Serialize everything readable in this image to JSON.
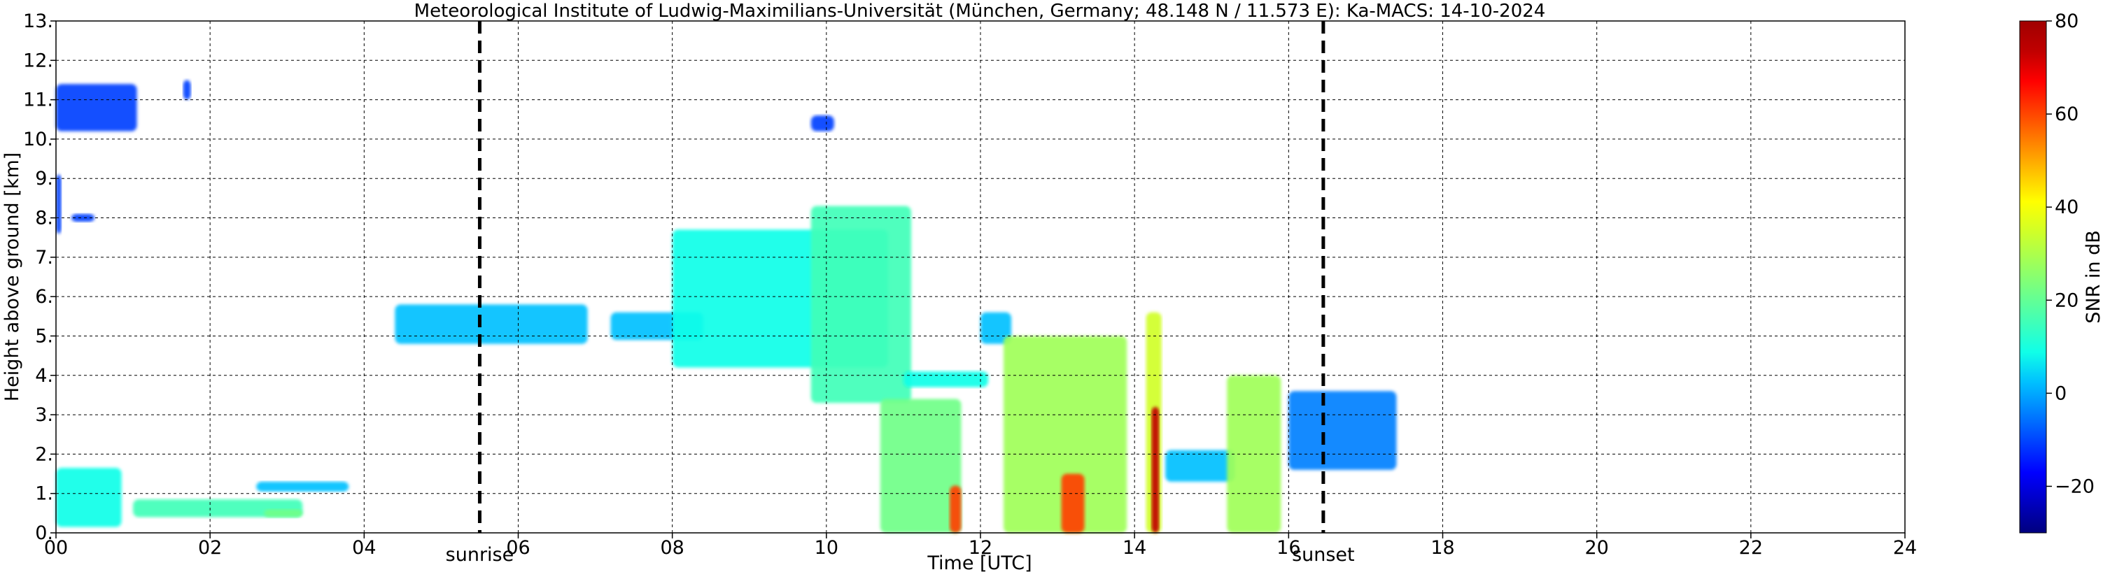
{
  "chart_data": {
    "type": "heatmap",
    "title": "Meteorological Institute of Ludwig-Maximilians-Universität (München, Germany; 48.148 N / 11.573 E):    Ka-MACS: 14-10-2024",
    "xlabel": "Time [UTC]",
    "ylabel": "Height above ground [km]",
    "xlim": [
      0,
      24
    ],
    "ylim": [
      0,
      13
    ],
    "xticks": [
      0,
      2,
      4,
      6,
      8,
      10,
      12,
      14,
      16,
      18,
      20,
      22,
      24
    ],
    "xtick_labels": [
      "00",
      "02",
      "04",
      "06",
      "08",
      "10",
      "12",
      "14",
      "16",
      "18",
      "20",
      "22",
      "24"
    ],
    "yticks": [
      0,
      1,
      2,
      3,
      4,
      5,
      6,
      7,
      8,
      9,
      10,
      11,
      12,
      13
    ],
    "ytick_labels": [
      "0.",
      "1.",
      "2.",
      "3.",
      "4.",
      "5.",
      "6.",
      "7.",
      "8.",
      "9.",
      "10.",
      "11.",
      "12.",
      "13."
    ],
    "grid": true,
    "markers": [
      {
        "label": "sunrise",
        "x": 5.5
      },
      {
        "label": "sunset",
        "x": 16.45
      }
    ],
    "colorbar": {
      "label": "SNR in dB",
      "range": [
        -30,
        80
      ],
      "ticks": [
        -20,
        0,
        20,
        40,
        60,
        80
      ],
      "tick_labels": [
        "−20",
        "0",
        "20",
        "40",
        "60",
        "80"
      ],
      "colors": [
        "#00007f",
        "#0000c0",
        "#0000ff",
        "#0040ff",
        "#0080ff",
        "#00c0ff",
        "#10ffe8",
        "#40ffb8",
        "#70ff88",
        "#a0ff58",
        "#d0ff28",
        "#ffff00",
        "#ffc000",
        "#ff8000",
        "#ff4000",
        "#ff0000",
        "#c00000",
        "#a00000"
      ]
    },
    "echoes": [
      {
        "x0": 0.0,
        "x1": 1.05,
        "y0": 10.2,
        "y1": 11.4,
        "snr": -12
      },
      {
        "x0": 1.65,
        "x1": 1.75,
        "y0": 11.0,
        "y1": 11.5,
        "snr": -10
      },
      {
        "x0": 0.0,
        "x1": 0.07,
        "y0": 7.6,
        "y1": 9.1,
        "snr": -10
      },
      {
        "x0": 0.2,
        "x1": 0.5,
        "y0": 7.9,
        "y1": 8.1,
        "snr": -8
      },
      {
        "x0": 0.0,
        "x1": 0.85,
        "y0": 0.15,
        "y1": 1.65,
        "snr": 12
      },
      {
        "x0": 1.0,
        "x1": 3.2,
        "y0": 0.4,
        "y1": 0.85,
        "snr": 15
      },
      {
        "x0": 2.7,
        "x1": 3.2,
        "y0": 0.4,
        "y1": 0.6,
        "snr": 20
      },
      {
        "x0": 2.6,
        "x1": 3.8,
        "y0": 1.05,
        "y1": 1.3,
        "snr": 0
      },
      {
        "x0": 4.4,
        "x1": 6.9,
        "y0": 4.8,
        "y1": 5.8,
        "snr": 5
      },
      {
        "x0": 7.2,
        "x1": 8.4,
        "y0": 4.9,
        "y1": 5.6,
        "snr": 2
      },
      {
        "x0": 8.0,
        "x1": 10.8,
        "y0": 4.2,
        "y1": 7.7,
        "snr": 12
      },
      {
        "x0": 9.8,
        "x1": 11.1,
        "y0": 3.3,
        "y1": 8.3,
        "snr": 16
      },
      {
        "x0": 11.0,
        "x1": 12.1,
        "y0": 3.7,
        "y1": 4.1,
        "snr": 8
      },
      {
        "x0": 10.7,
        "x1": 11.75,
        "y0": 0.0,
        "y1": 3.4,
        "snr": 24
      },
      {
        "x0": 11.6,
        "x1": 11.75,
        "y0": 0.0,
        "y1": 1.2,
        "snr": 62
      },
      {
        "x0": 12.0,
        "x1": 12.4,
        "y0": 4.8,
        "y1": 5.6,
        "snr": 5
      },
      {
        "x0": 12.3,
        "x1": 13.9,
        "y0": 0.0,
        "y1": 5.0,
        "snr": 26
      },
      {
        "x0": 13.05,
        "x1": 13.35,
        "y0": 0.0,
        "y1": 1.5,
        "snr": 60
      },
      {
        "x0": 14.15,
        "x1": 14.35,
        "y0": 0.0,
        "y1": 5.6,
        "snr": 36
      },
      {
        "x0": 14.22,
        "x1": 14.32,
        "y0": 0.0,
        "y1": 3.2,
        "snr": 72
      },
      {
        "x0": 14.4,
        "x1": 15.3,
        "y0": 1.3,
        "y1": 2.1,
        "snr": 4
      },
      {
        "x0": 15.2,
        "x1": 15.9,
        "y0": 0.0,
        "y1": 4.0,
        "snr": 28
      },
      {
        "x0": 16.0,
        "x1": 17.4,
        "y0": 1.6,
        "y1": 3.6,
        "snr": -4
      },
      {
        "x0": 9.8,
        "x1": 10.1,
        "y0": 10.2,
        "y1": 10.6,
        "snr": -8
      }
    ]
  }
}
